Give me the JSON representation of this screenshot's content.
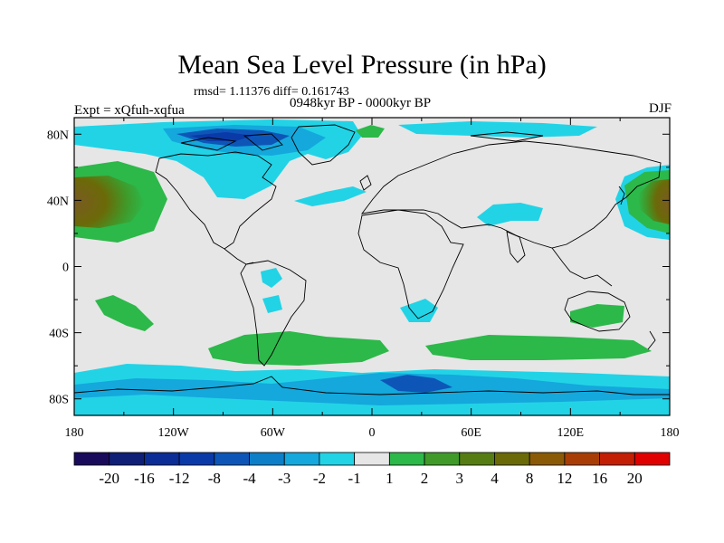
{
  "chart_data": {
    "type": "heatmap",
    "title": "Mean Sea Level Pressure (in hPa)",
    "subtitle_stats": "rmsd= 1.11376 diff= 0.161743",
    "subtitle_period": "0948kyr BP - 0000kyr BP",
    "left_label": "Expt = xQfuh-xqfua",
    "right_label": "DJF",
    "x_ticks": [
      "180",
      "120W",
      "60W",
      "0",
      "60E",
      "120E",
      "180"
    ],
    "y_ticks": [
      "80N",
      "40N",
      "0",
      "40S",
      "80S"
    ],
    "xlim": [
      -180,
      180
    ],
    "ylim": [
      -90,
      90
    ],
    "colorbar_labels": [
      "-20",
      "-16",
      "-12",
      "-8",
      "-4",
      "-3",
      "-2",
      "-1",
      "1",
      "2",
      "3",
      "4",
      "8",
      "12",
      "16",
      "20"
    ],
    "colorbar_colors": [
      "#1a0a5c",
      "#0f1f78",
      "#0c2d96",
      "#0a3aa8",
      "#0d56b8",
      "#0c7fc8",
      "#14a8dc",
      "#22d3e6",
      "#e6e6e6",
      "#2db84a",
      "#3f9a2a",
      "#557d14",
      "#6b6a08",
      "#8a5a06",
      "#a83e06",
      "#c21f05",
      "#e00000"
    ],
    "colors": {
      "background": "#e6e6e6",
      "cyan": "#22d3e6",
      "light_blue": "#14a8dc",
      "blue": "#0d56b8",
      "dark_blue": "#0a3aa8",
      "green": "#2db84a",
      "dark_green": "#3f9a2a",
      "olive": "#557d14",
      "brown": "#7a5a22"
    }
  }
}
